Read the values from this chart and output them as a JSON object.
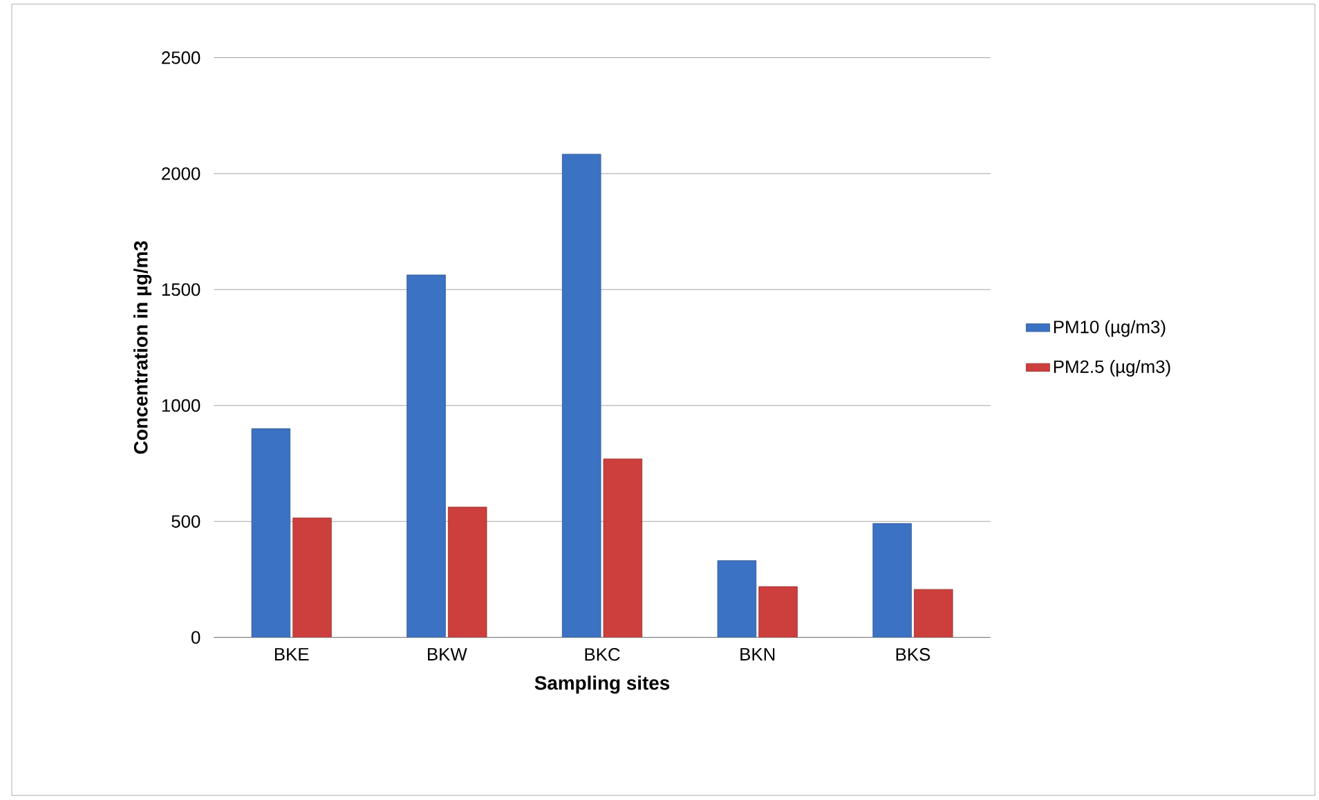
{
  "chart_data": {
    "type": "bar",
    "xlabel": "Sampling sites",
    "ylabel": "Concentration in µg/m3",
    "categories": [
      "BKE",
      "BKW",
      "BKC",
      "BKN",
      "BKS"
    ],
    "series": [
      {
        "name": "PM10 (µg/m3)",
        "color": "#3c72c4",
        "values": [
          900,
          1563,
          2084,
          331,
          491
        ]
      },
      {
        "name": "PM2.5 (µg/m3)",
        "color": "#cc3f3c",
        "values": [
          515,
          562,
          770,
          219,
          207
        ]
      }
    ],
    "ylim": [
      0,
      2500
    ],
    "yticks": [
      0,
      500,
      1000,
      1500,
      2000,
      2500
    ],
    "grid": "y",
    "legend": "right"
  }
}
